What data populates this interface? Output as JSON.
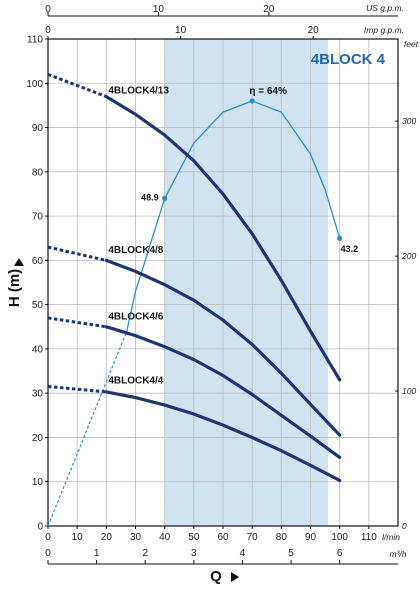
{
  "chart_data": {
    "type": "line",
    "title": "4BLOCK 4",
    "xlabel": "Q",
    "ylabel": "H (m)",
    "x_unit_label": "l/min",
    "xlim": [
      0,
      120
    ],
    "ylim": [
      0,
      110
    ],
    "x_ticks": [
      0,
      10,
      20,
      30,
      40,
      50,
      60,
      70,
      80,
      90,
      100,
      110
    ],
    "y_ticks": [
      0,
      10,
      20,
      30,
      40,
      50,
      60,
      70,
      80,
      90,
      100,
      110
    ],
    "secondary_axes": {
      "top_us": {
        "label": "US g.p.m.",
        "ticks": [
          0,
          10,
          20
        ],
        "factor_per_lmin": 0.264172
      },
      "top_imp": {
        "label": "Imp g.p.m.",
        "ticks": [
          0,
          10,
          20
        ],
        "factor_per_lmin": 0.219969
      },
      "bottom_m3h": {
        "label": "m³/h",
        "ticks": [
          0,
          1,
          2,
          3,
          4,
          5,
          6
        ],
        "factor_per_lmin": 0.06
      },
      "right_feet": {
        "label": "feet",
        "ticks": [
          0,
          100,
          200,
          300
        ],
        "factor_per_m": 3.28084
      }
    },
    "operating_range": {
      "x_from": 40,
      "x_to": 96
    },
    "colors": {
      "curve": "#1e3572",
      "efficiency": "#2c8fc7",
      "band": "#cfe3f1",
      "grid": "#bcbcbc",
      "title": "#2466ad"
    },
    "series": [
      {
        "name": "4BLOCK4/13",
        "label_xy": [
          20,
          97
        ],
        "dashed": {
          "x": [
            0,
            20
          ],
          "y": [
            102,
            97
          ]
        },
        "solid": {
          "x": [
            20,
            30,
            40,
            50,
            60,
            70,
            80,
            90,
            100
          ],
          "y": [
            97,
            93,
            88.3,
            82.5,
            75,
            66,
            55.5,
            44,
            33
          ]
        }
      },
      {
        "name": "4BLOCK4/8",
        "label_xy": [
          20,
          61
        ],
        "dashed": {
          "x": [
            0,
            20
          ],
          "y": [
            63,
            60
          ]
        },
        "solid": {
          "x": [
            20,
            30,
            40,
            50,
            60,
            70,
            80,
            90,
            100
          ],
          "y": [
            60,
            57.5,
            54.5,
            51,
            46.5,
            41,
            34.5,
            27.5,
            20.5
          ]
        }
      },
      {
        "name": "4BLOCK4/6",
        "label_xy": [
          20,
          46
        ],
        "dashed": {
          "x": [
            0,
            20
          ],
          "y": [
            47,
            45
          ]
        },
        "solid": {
          "x": [
            20,
            30,
            40,
            50,
            60,
            70,
            80,
            90,
            100
          ],
          "y": [
            45,
            43,
            40.5,
            37.6,
            34,
            29.7,
            25,
            20.3,
            15.5
          ]
        }
      },
      {
        "name": "4BLOCK4/4",
        "label_xy": [
          20,
          31.5
        ],
        "dashed": {
          "x": [
            0,
            20
          ],
          "y": [
            31.5,
            30.3
          ]
        },
        "solid": {
          "x": [
            20,
            30,
            40,
            50,
            60,
            70,
            80,
            90,
            100
          ],
          "y": [
            30.3,
            29,
            27.3,
            25.3,
            22.8,
            20,
            17,
            13.7,
            10.3
          ]
        }
      }
    ],
    "efficiency": {
      "dashed": {
        "x": [
          0,
          27
        ],
        "y": [
          0,
          44
        ]
      },
      "solid": {
        "x": [
          27,
          30,
          40,
          50,
          60,
          70,
          80,
          90,
          95,
          100
        ],
        "y": [
          44,
          53,
          74,
          86.5,
          93.5,
          96,
          93.5,
          84,
          76,
          65
        ]
      },
      "points": [
        {
          "x": 40,
          "y": 74,
          "label": "48.9"
        },
        {
          "x": 70,
          "y": 96,
          "label": "η = 64%"
        },
        {
          "x": 100,
          "y": 65,
          "label": "43.2"
        }
      ]
    }
  }
}
